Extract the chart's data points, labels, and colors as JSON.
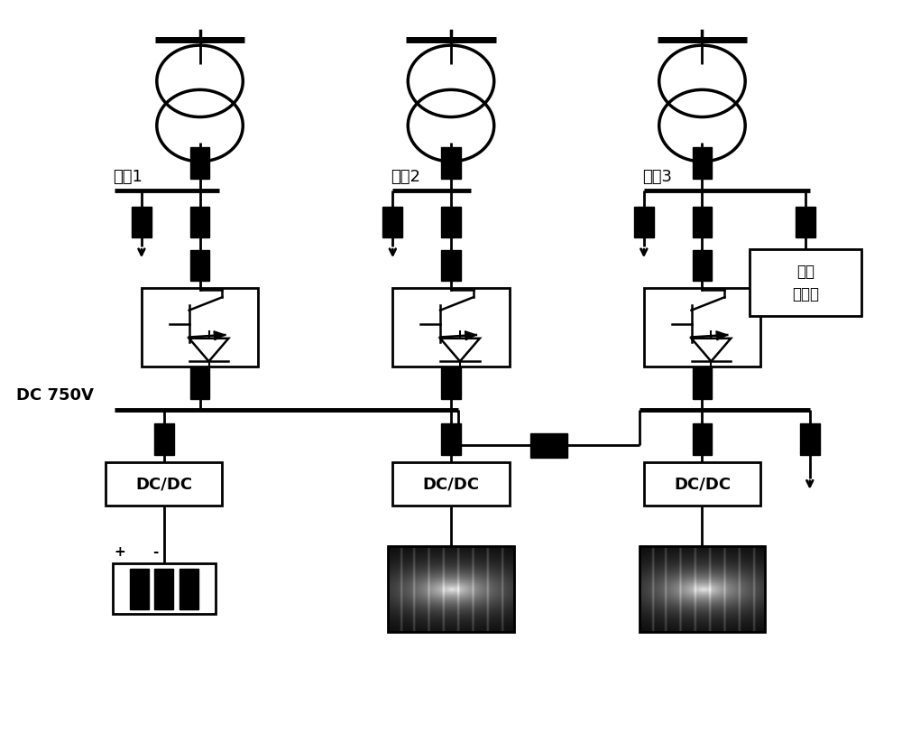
{
  "bg_color": "#ffffff",
  "line_color": "#000000",
  "cols": [
    0.22,
    0.5,
    0.78
  ],
  "labels": [
    "台区1",
    "台区2",
    "台区3"
  ],
  "dc750v_label": "DC 750V",
  "dc_dc_label": "DC/DC",
  "diesel_label": "柴油\n发电机",
  "fig_width": 10.0,
  "fig_height": 8.33
}
